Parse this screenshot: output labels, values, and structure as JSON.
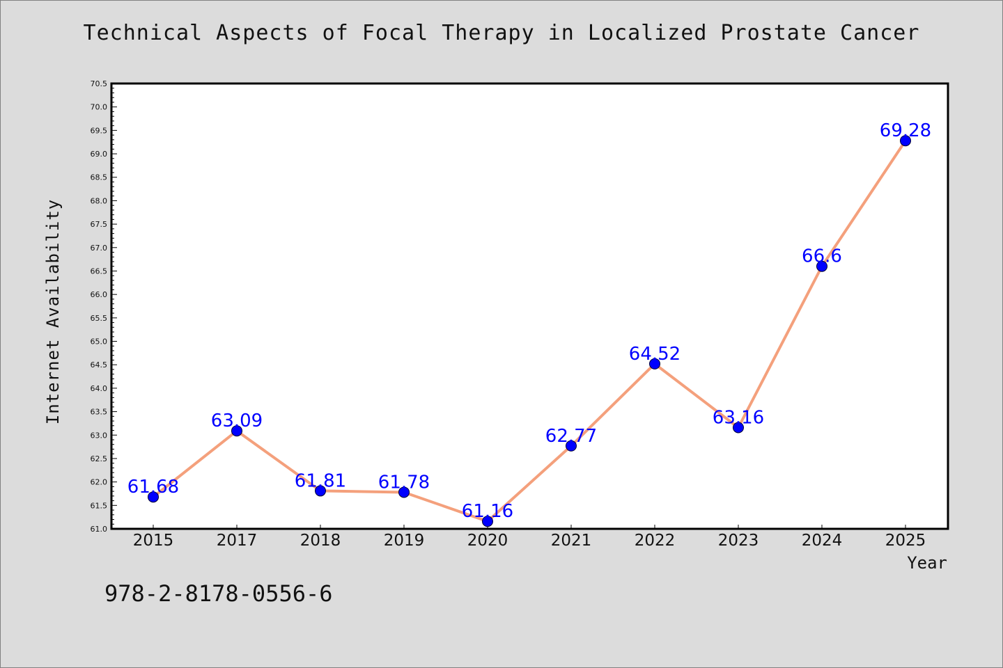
{
  "chart_data": {
    "type": "line",
    "title": "Technical Aspects of Focal Therapy in Localized Prostate Cancer",
    "xlabel": "Year",
    "ylabel": "Internet Availability",
    "categories": [
      "2015",
      "2017",
      "2018",
      "2019",
      "2020",
      "2021",
      "2022",
      "2023",
      "2024",
      "2025"
    ],
    "series": [
      {
        "values": [
          61.68,
          63.09,
          61.81,
          61.78,
          61.16,
          62.77,
          64.52,
          63.16,
          66.6,
          69.28
        ],
        "labels": [
          "61.68",
          "63.09",
          "61.81",
          "61.78",
          "61.16",
          "62.77",
          "64.52",
          "63.16",
          "66.6",
          "69.28"
        ],
        "line_color": "#f4a07c",
        "marker_color": "#0000ff"
      }
    ],
    "ylim": [
      61.0,
      70.5
    ],
    "yticks": [
      "61.0",
      "61.5",
      "62.0",
      "62.5",
      "63.0",
      "63.5",
      "64.0",
      "64.5",
      "65.0",
      "65.5",
      "66.0",
      "66.5",
      "67.0",
      "67.5",
      "68.0",
      "68.5",
      "69.0",
      "69.5",
      "70.0",
      "70.5"
    ],
    "grid": false,
    "legend": "none"
  },
  "footnote": "978-2-8178-0556-6"
}
